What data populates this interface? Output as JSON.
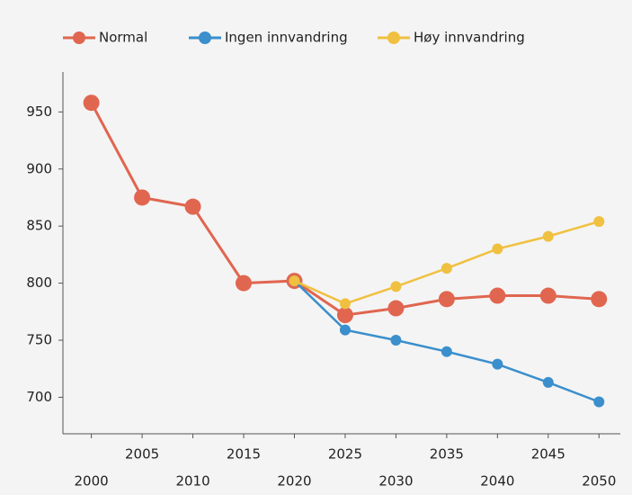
{
  "chart_data": {
    "type": "line",
    "x": [
      2000,
      2005,
      2010,
      2015,
      2020,
      2025,
      2030,
      2035,
      2040,
      2045,
      2050
    ],
    "series": [
      {
        "name": "Normal",
        "color": "#e06650",
        "values": [
          958,
          875,
          867,
          800,
          802,
          772,
          778,
          786,
          789,
          789,
          786
        ]
      },
      {
        "name": "Ingen innvandring",
        "color": "#3a8fcc",
        "values": [
          null,
          null,
          null,
          null,
          802,
          759,
          750,
          740,
          729,
          713,
          696
        ]
      },
      {
        "name": "Høy innvandring",
        "color": "#f0c040",
        "values": [
          null,
          null,
          null,
          null,
          802,
          782,
          797,
          813,
          830,
          841,
          854
        ]
      }
    ],
    "xlim": [
      1997.2,
      2052.1
    ],
    "xticks": [
      2000,
      2005,
      2010,
      2015,
      2020,
      2025,
      2030,
      2035,
      2040,
      2045,
      2050
    ],
    "ylim": [
      668,
      985
    ],
    "yticks": [
      700,
      750,
      800,
      850,
      900,
      950
    ],
    "legend": "top"
  }
}
